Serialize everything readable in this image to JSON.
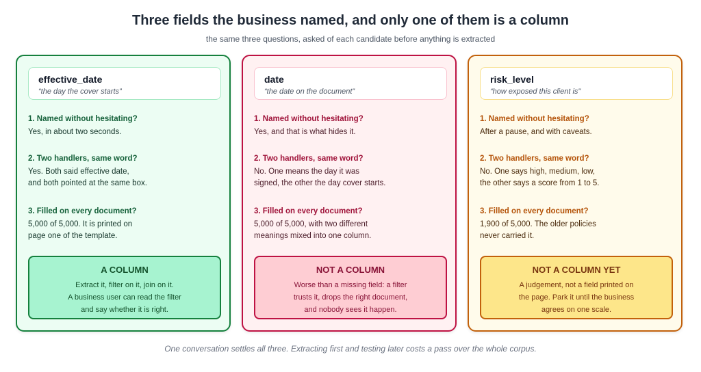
{
  "title": "Three fields the business named, and only one of them is a column",
  "subtitle": "the same three questions, asked of each candidate before anything is extracted",
  "footer": "One conversation settles all three. Extracting first and testing later costs a pass over the whole corpus.",
  "colors": {
    "column_accent": "#15803d",
    "not_column_accent": "#be1243",
    "not_yet_accent": "#c2610c"
  },
  "cards": [
    {
      "field": "effective_date",
      "description": "“the day the cover starts”",
      "q1_label": "1. Named without hesitating?",
      "q1_answer": "Yes, in about two seconds.",
      "q2_label": "2. Two handlers, same word?",
      "q2_answer": "Yes. Both said effective date,\nand both pointed at the same box.",
      "q3_label": "3. Filled on every document?",
      "q3_answer": "5,000 of 5,000. It is printed on\npage one of the template.",
      "verdict_title": "A COLUMN",
      "verdict_text": "Extract it, filter on it, join on it.\nA business user can read the filter\nand say whether it is right."
    },
    {
      "field": "date",
      "description": "“the date on the document”",
      "q1_label": "1. Named without hesitating?",
      "q1_answer": "Yes, and that is what hides it.",
      "q2_label": "2. Two handlers, same word?",
      "q2_answer": "No. One means the day it was\nsigned, the other the day cover starts.",
      "q3_label": "3. Filled on every document?",
      "q3_answer": "5,000 of 5,000, with two different\nmeanings mixed into one column.",
      "verdict_title": "NOT A COLUMN",
      "verdict_text": "Worse than a missing field: a filter\ntrusts it, drops the right document,\nand nobody sees it happen."
    },
    {
      "field": "risk_level",
      "description": "“how exposed this client is”",
      "q1_label": "1. Named without hesitating?",
      "q1_answer": "After a pause, and with caveats.",
      "q2_label": "2. Two handlers, same word?",
      "q2_answer": "No. One says high, medium, low,\nthe other says a score from 1 to 5.",
      "q3_label": "3. Filled on every document?",
      "q3_answer": "1,900 of 5,000. The older policies\nnever carried it.",
      "verdict_title": "NOT A COLUMN YET",
      "verdict_text": "A judgement, not a field printed on\nthe page. Park it until the business\nagrees on one scale."
    }
  ]
}
